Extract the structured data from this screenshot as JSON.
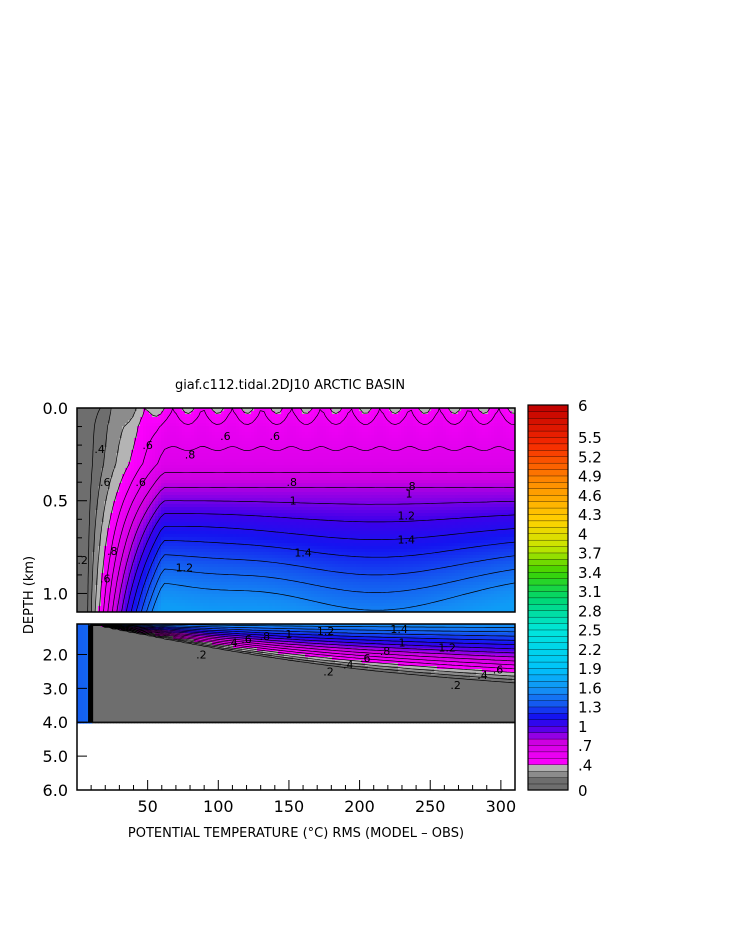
{
  "chart_data": {
    "type": "heatmap",
    "title": "giaf.c112.tidal.2DJ10 ARCTIC BASIN",
    "xlabel": "POTENTIAL TEMPERATURE (°C) RMS (MODEL – OBS)",
    "ylabel": "DEPTH (km)",
    "xlim": [
      0,
      310
    ],
    "x_ticks": [
      "50",
      "100",
      "150",
      "200",
      "250",
      "300"
    ],
    "x_tick_values": [
      50,
      100,
      150,
      200,
      250,
      300
    ],
    "upper_panel": {
      "ylim": [
        0.0,
        1.1
      ],
      "y_ticks": [
        "0.0",
        "0.5",
        "1.0"
      ],
      "y_tick_values": [
        0.0,
        0.5,
        1.0
      ]
    },
    "lower_panel": {
      "ylim": [
        1.1,
        6.0
      ],
      "y_ticks": [
        "2.0",
        "3.0",
        "4.0",
        "5.0",
        "6.0"
      ],
      "y_tick_values": [
        2.0,
        3.0,
        4.0,
        5.0,
        6.0
      ],
      "ocean_floor_depth": 4.0
    },
    "colorbar": {
      "range": [
        0,
        6
      ],
      "labels": [
        "6",
        "5.5",
        "5.2",
        "4.9",
        "4.6",
        "4.3",
        "4",
        "3.7",
        "3.4",
        "3.1",
        "2.8",
        "2.5",
        "2.2",
        "1.9",
        "1.6",
        "1.3",
        "1",
        ".7",
        ".4",
        "0"
      ],
      "label_values": [
        6,
        5.5,
        5.2,
        4.9,
        4.6,
        4.3,
        4,
        3.7,
        3.4,
        3.1,
        2.8,
        2.5,
        2.2,
        1.9,
        1.6,
        1.3,
        1,
        0.7,
        0.4,
        0
      ]
    },
    "contour_labels": [
      {
        "text": ".2",
        "x": 4,
        "depth": 0.82
      },
      {
        "text": ".4",
        "x": 16,
        "depth": 0.22
      },
      {
        "text": ".6",
        "x": 20,
        "depth": 0.4
      },
      {
        "text": ".8",
        "x": 25,
        "depth": 0.77
      },
      {
        "text": ".6",
        "x": 20,
        "depth": 0.92
      },
      {
        "text": ".6",
        "x": 50,
        "depth": 0.2
      },
      {
        "text": ".6",
        "x": 45,
        "depth": 0.4
      },
      {
        "text": ".8",
        "x": 80,
        "depth": 0.25
      },
      {
        "text": ".6",
        "x": 105,
        "depth": 0.15
      },
      {
        "text": ".6",
        "x": 140,
        "depth": 0.15
      },
      {
        "text": "1.2",
        "x": 76,
        "depth": 0.86
      },
      {
        "text": ".8",
        "x": 152,
        "depth": 0.4
      },
      {
        "text": "1",
        "x": 153,
        "depth": 0.5
      },
      {
        "text": "1.4",
        "x": 160,
        "depth": 0.78
      },
      {
        "text": ".8",
        "x": 236,
        "depth": 0.42
      },
      {
        "text": "1",
        "x": 235,
        "depth": 0.46
      },
      {
        "text": "1.2",
        "x": 233,
        "depth": 0.58
      },
      {
        "text": "1.4",
        "x": 233,
        "depth": 0.71
      },
      {
        "text": ".4",
        "x": 110,
        "depth": 1.65
      },
      {
        "text": ".6",
        "x": 120,
        "depth": 1.55
      },
      {
        "text": ".8",
        "x": 133,
        "depth": 1.45
      },
      {
        "text": "1",
        "x": 150,
        "depth": 1.4
      },
      {
        "text": "1.2",
        "x": 176,
        "depth": 1.3
      },
      {
        "text": "1.4",
        "x": 228,
        "depth": 1.25
      },
      {
        "text": ".2",
        "x": 88,
        "depth": 2.0
      },
      {
        "text": ".2",
        "x": 178,
        "depth": 2.5
      },
      {
        "text": ".4",
        "x": 192,
        "depth": 2.3
      },
      {
        "text": ".6",
        "x": 204,
        "depth": 2.1
      },
      {
        "text": ".8",
        "x": 218,
        "depth": 1.9
      },
      {
        "text": "1",
        "x": 230,
        "depth": 1.65
      },
      {
        "text": "1.2",
        "x": 262,
        "depth": 1.8
      },
      {
        "text": ".2",
        "x": 268,
        "depth": 2.9
      },
      {
        "text": ".4",
        "x": 287,
        "depth": 2.6
      },
      {
        "text": ".6",
        "x": 298,
        "depth": 2.45
      }
    ]
  }
}
